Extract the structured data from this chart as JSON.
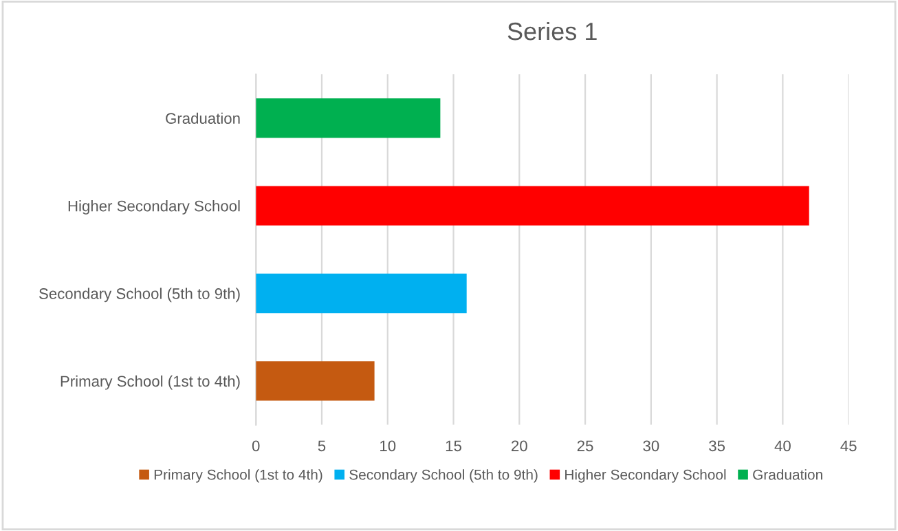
{
  "chart_data": {
    "type": "bar",
    "orientation": "horizontal",
    "title": "Series 1",
    "categories": [
      "Graduation",
      "Higher Secondary School",
      "Secondary School (5th to 9th)",
      "Primary School (1st to 4th)"
    ],
    "series": [
      {
        "name": "Primary School (1st to 4th)",
        "color": "#c55a11",
        "values": [
          null,
          null,
          null,
          9
        ]
      },
      {
        "name": "Secondary School (5th to 9th)",
        "color": "#00b0f0",
        "values": [
          null,
          null,
          16,
          null
        ]
      },
      {
        "name": "Higher Secondary School",
        "color": "#ff0000",
        "values": [
          null,
          42,
          null,
          null
        ]
      },
      {
        "name": "Graduation",
        "color": "#00b050",
        "values": [
          14,
          null,
          null,
          null
        ]
      }
    ],
    "xlim": [
      0,
      45
    ],
    "xticks": [
      0,
      5,
      10,
      15,
      20,
      25,
      30,
      35,
      40,
      45
    ],
    "grid": "x",
    "legend": "bottom"
  }
}
